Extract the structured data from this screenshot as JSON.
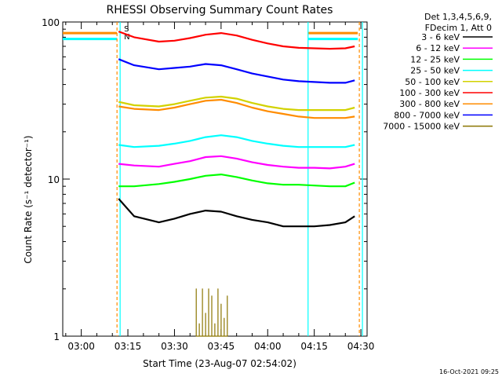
{
  "chart_data": {
    "type": "line",
    "title": "RHESSI Observing Summary Count Rates",
    "xlabel": "Start Time (23-Aug-07 02:54:02)",
    "ylabel": "Count Rate (s⁻¹ detector⁻¹)",
    "yscale": "log",
    "ylim": [
      1,
      100
    ],
    "xlim": [
      "02:54:02",
      "04:32:00"
    ],
    "x_ticks": [
      "03:00",
      "03:15",
      "03:30",
      "03:45",
      "04:00",
      "04:15",
      "04:30"
    ],
    "y_ticks": [
      "1",
      "10",
      "100"
    ],
    "grid": false,
    "legend_position": "top-right",
    "legend_header": [
      "Det 1,3,4,5,6,9,",
      "FDecim 1, Att 0"
    ],
    "timestamp": "16-Oct-2021 09:25",
    "marker_labels": [
      "S",
      "N"
    ],
    "series": [
      {
        "name": "3 - 6 keV",
        "color": "#000000",
        "x": [
          "03:12",
          "03:17",
          "03:25",
          "03:30",
          "03:35",
          "03:40",
          "03:45",
          "03:50",
          "03:55",
          "04:00",
          "04:05",
          "04:10",
          "04:15",
          "04:20",
          "04:25",
          "04:28"
        ],
        "values": [
          7.5,
          5.8,
          5.3,
          5.6,
          6.0,
          6.3,
          6.2,
          5.8,
          5.5,
          5.3,
          5.0,
          5.0,
          5.0,
          5.1,
          5.3,
          5.8
        ]
      },
      {
        "name": "6 - 12 keV",
        "color": "#ff00ff",
        "x": [
          "03:12",
          "03:17",
          "03:25",
          "03:30",
          "03:35",
          "03:40",
          "03:45",
          "03:50",
          "03:55",
          "04:00",
          "04:05",
          "04:10",
          "04:15",
          "04:20",
          "04:25",
          "04:28"
        ],
        "values": [
          12.5,
          12.2,
          12.0,
          12.5,
          13.0,
          13.8,
          14.0,
          13.5,
          12.8,
          12.3,
          12.0,
          11.8,
          11.8,
          11.7,
          12.0,
          12.5
        ]
      },
      {
        "name": "12 - 25 keV",
        "color": "#00ff00",
        "x": [
          "03:12",
          "03:17",
          "03:25",
          "03:30",
          "03:35",
          "03:40",
          "03:45",
          "03:50",
          "03:55",
          "04:00",
          "04:05",
          "04:10",
          "04:15",
          "04:20",
          "04:25",
          "04:28"
        ],
        "values": [
          9.0,
          9.0,
          9.3,
          9.6,
          10.0,
          10.5,
          10.7,
          10.3,
          9.8,
          9.4,
          9.2,
          9.2,
          9.1,
          9.0,
          9.0,
          9.5
        ]
      },
      {
        "name": "25 - 50 keV",
        "color": "#00ffff",
        "x": [
          "03:12",
          "03:17",
          "03:25",
          "03:30",
          "03:35",
          "03:40",
          "03:45",
          "03:50",
          "03:55",
          "04:00",
          "04:05",
          "04:10",
          "04:15",
          "04:20",
          "04:25",
          "04:28"
        ],
        "values": [
          16.5,
          16.0,
          16.3,
          16.8,
          17.5,
          18.5,
          19.0,
          18.5,
          17.5,
          16.8,
          16.3,
          16.0,
          16.0,
          16.0,
          16.0,
          16.5
        ]
      },
      {
        "name": "50 - 100 keV",
        "color": "#d2d200",
        "x": [
          "03:12",
          "03:17",
          "03:25",
          "03:30",
          "03:35",
          "03:40",
          "03:45",
          "03:50",
          "03:55",
          "04:00",
          "04:05",
          "04:10",
          "04:15",
          "04:20",
          "04:25",
          "04:28"
        ],
        "values": [
          31,
          29.5,
          29,
          30,
          31.5,
          33,
          33.5,
          32.5,
          30.5,
          29,
          28,
          27.5,
          27.5,
          27.5,
          27.5,
          28.5
        ]
      },
      {
        "name": "100 - 300 keV",
        "color": "#ff0000",
        "x": [
          "03:12",
          "03:17",
          "03:25",
          "03:30",
          "03:35",
          "03:40",
          "03:45",
          "03:50",
          "03:55",
          "04:00",
          "04:05",
          "04:10",
          "04:15",
          "04:20",
          "04:25",
          "04:28"
        ],
        "values": [
          87,
          80,
          75,
          76,
          79,
          83,
          85,
          82,
          77,
          73,
          70,
          68.5,
          68,
          67.5,
          68,
          70
        ]
      },
      {
        "name": "300 - 800 keV",
        "color": "#ff8c00",
        "x": [
          "03:12",
          "03:17",
          "03:25",
          "03:30",
          "03:35",
          "03:40",
          "03:45",
          "03:50",
          "03:55",
          "04:00",
          "04:05",
          "04:10",
          "04:15",
          "04:20",
          "04:25",
          "04:28"
        ],
        "values": [
          29,
          28,
          27.5,
          28.5,
          30,
          31.5,
          32,
          30.5,
          28.5,
          27,
          26,
          25,
          24.5,
          24.5,
          24.5,
          25
        ]
      },
      {
        "name": "800 - 7000 keV",
        "color": "#0000ff",
        "x": [
          "03:12",
          "03:17",
          "03:25",
          "03:30",
          "03:35",
          "03:40",
          "03:45",
          "03:50",
          "03:55",
          "04:00",
          "04:05",
          "04:10",
          "04:15",
          "04:20",
          "04:25",
          "04:28"
        ],
        "values": [
          58,
          53,
          50,
          51,
          52,
          54,
          53,
          50,
          47,
          45,
          43,
          42,
          41.5,
          41,
          41,
          42.5
        ]
      },
      {
        "name": "7000 - 15000 keV",
        "color": "#8b7500",
        "x": [
          "03:37",
          "03:38",
          "03:39",
          "03:40",
          "03:41",
          "03:42",
          "03:43",
          "03:44",
          "03:45",
          "03:46",
          "03:47"
        ],
        "values": [
          2.0,
          1.2,
          2.0,
          1.4,
          2.0,
          1.8,
          1.2,
          2.0,
          1.6,
          1.3,
          1.8
        ]
      }
    ],
    "saa_intervals": [
      [
        "02:54:02",
        "03:11:30"
      ],
      [
        "04:13:00",
        "04:29:00"
      ]
    ],
    "saa_levels": {
      "orange": 85,
      "cyan": 78
    },
    "markers": [
      {
        "time": "03:11:30",
        "color": "#ff8c00"
      },
      {
        "time": "03:12:30",
        "color": "#00ffff"
      },
      {
        "time": "04:13:00",
        "color": "#00ffff"
      },
      {
        "time": "04:29:30",
        "color": "#ff8c00"
      },
      {
        "time": "04:30:30",
        "color": "#00ffff"
      }
    ]
  }
}
